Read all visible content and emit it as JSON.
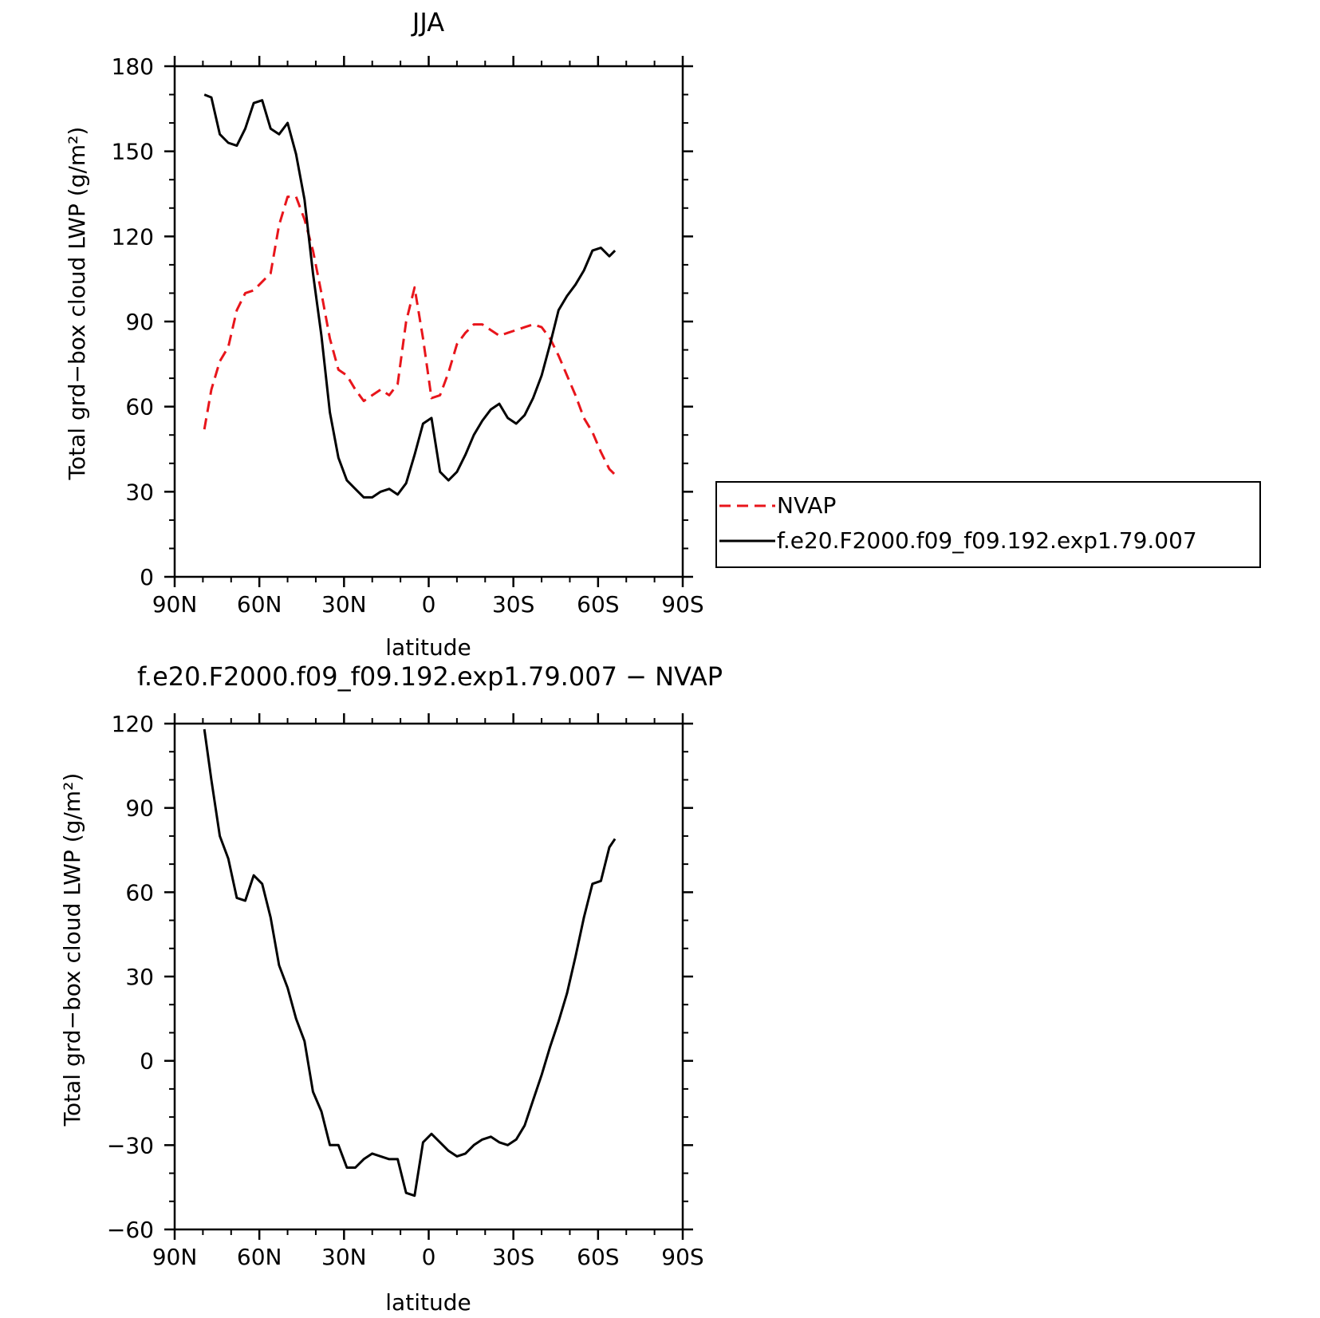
{
  "chart_data": [
    {
      "type": "line",
      "title": "JJA",
      "xlabel": "latitude",
      "ylabel": "Total grd−box cloud LWP (g/m²)",
      "xlim": [
        90,
        -90
      ],
      "ylim": [
        0,
        180
      ],
      "x_ticks": [
        90,
        60,
        30,
        0,
        -30,
        -60,
        -90
      ],
      "x_tick_labels": [
        "90N",
        "60N",
        "30N",
        "0",
        "30S",
        "60S",
        "90S"
      ],
      "y_ticks": [
        0,
        30,
        60,
        90,
        120,
        150,
        180
      ],
      "y_tick_labels": [
        "0",
        "30",
        "60",
        "90",
        "120",
        "150",
        "180"
      ],
      "grid": false,
      "legend_position": "right",
      "series": [
        {
          "name": "NVAP",
          "color": "#e8151b",
          "dash": "dashed",
          "x": [
            79.5,
            77,
            74,
            71,
            68,
            65,
            62,
            59,
            56,
            53,
            50,
            47,
            44,
            41,
            38,
            35,
            32,
            29,
            26,
            23,
            20,
            17,
            14,
            11,
            8,
            5,
            2,
            -1,
            -4,
            -7,
            -10,
            -13,
            -16,
            -19,
            -22,
            -25,
            -28,
            -31,
            -34,
            -37,
            -40,
            -43,
            -46,
            -49,
            -52,
            -55,
            -58,
            -61,
            -64,
            -66
          ],
          "y": [
            52,
            66,
            76,
            81,
            94,
            100,
            101,
            104,
            107,
            124,
            134,
            134,
            126,
            115,
            100,
            84,
            73,
            71,
            66,
            62,
            64,
            66,
            64,
            68,
            90,
            102,
            84,
            63,
            64,
            72,
            82,
            86,
            89,
            89,
            87,
            85,
            86,
            87,
            88,
            89,
            88,
            84,
            78,
            71,
            64,
            56,
            51,
            44,
            38,
            36
          ]
        },
        {
          "name": "f.e20.F2000.f09_f09.192.exp1.79.007",
          "color": "#000000",
          "dash": "solid",
          "x": [
            79.5,
            77,
            74,
            71,
            68,
            65,
            62,
            59,
            56,
            53,
            50,
            47,
            44,
            41,
            38,
            35,
            32,
            29,
            26,
            23,
            20,
            17,
            14,
            11,
            8,
            5,
            2,
            -1,
            -4,
            -7,
            -10,
            -13,
            -16,
            -19,
            -22,
            -25,
            -28,
            -31,
            -34,
            -37,
            -40,
            -43,
            -46,
            -49,
            -52,
            -55,
            -58,
            -61,
            -64,
            -66
          ],
          "y": [
            170,
            169,
            156,
            153,
            152,
            158,
            167,
            168,
            158,
            156,
            160,
            149,
            133,
            107,
            85,
            58,
            42,
            34,
            31,
            28,
            28,
            30,
            31,
            29,
            33,
            43,
            54,
            56,
            37,
            34,
            37,
            43,
            50,
            55,
            59,
            61,
            56,
            54,
            57,
            63,
            71,
            82,
            94,
            99,
            103,
            108,
            115,
            116,
            113,
            115
          ]
        }
      ]
    },
    {
      "type": "line",
      "title": "f.e20.F2000.f09_f09.192.exp1.79.007 − NVAP",
      "xlabel": "latitude",
      "ylabel": "Total grd−box cloud LWP (g/m²)",
      "xlim": [
        90,
        -90
      ],
      "ylim": [
        -60,
        120
      ],
      "x_ticks": [
        90,
        60,
        30,
        0,
        -30,
        -60,
        -90
      ],
      "x_tick_labels": [
        "90N",
        "60N",
        "30N",
        "0",
        "30S",
        "60S",
        "90S"
      ],
      "y_ticks": [
        -60,
        -30,
        0,
        30,
        60,
        90,
        120
      ],
      "y_tick_labels": [
        "−60",
        "−30",
        "0",
        "30",
        "60",
        "90",
        "120"
      ],
      "grid": false,
      "series": [
        {
          "color": "#000000",
          "dash": "solid",
          "x": [
            79.5,
            77,
            74,
            71,
            68,
            65,
            62,
            59,
            56,
            53,
            50,
            47,
            44,
            41,
            38,
            35,
            32,
            29,
            26,
            23,
            20,
            17,
            14,
            11,
            8,
            5,
            2,
            -1,
            -4,
            -7,
            -10,
            -13,
            -16,
            -19,
            -22,
            -25,
            -28,
            -31,
            -34,
            -37,
            -40,
            -43,
            -46,
            -49,
            -52,
            -55,
            -58,
            -61,
            -64,
            -66
          ],
          "y": [
            118,
            100,
            80,
            72,
            58,
            57,
            66,
            63,
            51,
            34,
            26,
            15,
            7,
            -11,
            -18,
            -30,
            -30,
            -38,
            -38,
            -35,
            -33,
            -34,
            -35,
            -35,
            -47,
            -48,
            -29,
            -26,
            -29,
            -32,
            -34,
            -33,
            -30,
            -28,
            -27,
            -29,
            -30,
            -28,
            -23,
            -14,
            -5,
            5,
            14,
            24,
            37,
            51,
            63,
            64,
            76,
            79
          ]
        }
      ]
    }
  ]
}
